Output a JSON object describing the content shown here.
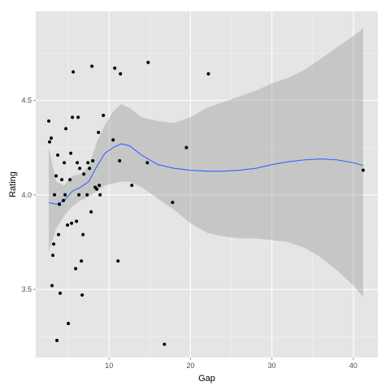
{
  "chart_data": {
    "type": "scatter",
    "xlabel": "Gap",
    "ylabel": "Rating",
    "xlim": [
      1.0,
      43.0
    ],
    "ylim": [
      3.14,
      4.97
    ],
    "x_ticks": [
      10,
      20,
      30,
      40
    ],
    "y_ticks": [
      3.5,
      4.0,
      4.5
    ],
    "x_tick_labels": [
      "10",
      "20",
      "30",
      "40"
    ],
    "y_tick_labels": [
      "3.5",
      "4.0",
      "4.5"
    ],
    "grid": true,
    "background": "#e5e5e5",
    "grid_color": "#ffffff",
    "point_color": "#000000",
    "smooth_line_color": "#3366ff",
    "confidence_band_color": "#999999",
    "points": [
      {
        "x": 2.6,
        "y": 4.39
      },
      {
        "x": 2.7,
        "y": 4.28
      },
      {
        "x": 2.9,
        "y": 4.3
      },
      {
        "x": 3.0,
        "y": 3.52
      },
      {
        "x": 3.1,
        "y": 3.68
      },
      {
        "x": 3.2,
        "y": 3.74
      },
      {
        "x": 3.3,
        "y": 4.0
      },
      {
        "x": 3.5,
        "y": 4.1
      },
      {
        "x": 3.6,
        "y": 3.23
      },
      {
        "x": 3.7,
        "y": 4.21
      },
      {
        "x": 3.8,
        "y": 3.79
      },
      {
        "x": 3.9,
        "y": 3.95
      },
      {
        "x": 4.0,
        "y": 3.48
      },
      {
        "x": 4.2,
        "y": 4.08
      },
      {
        "x": 4.4,
        "y": 3.97
      },
      {
        "x": 4.5,
        "y": 4.17
      },
      {
        "x": 4.6,
        "y": 4.0
      },
      {
        "x": 4.7,
        "y": 4.35
      },
      {
        "x": 4.9,
        "y": 3.84
      },
      {
        "x": 5.0,
        "y": 3.32
      },
      {
        "x": 5.2,
        "y": 4.08
      },
      {
        "x": 5.3,
        "y": 4.22
      },
      {
        "x": 5.4,
        "y": 3.85
      },
      {
        "x": 5.5,
        "y": 4.41
      },
      {
        "x": 5.6,
        "y": 4.65
      },
      {
        "x": 5.9,
        "y": 3.61
      },
      {
        "x": 6.0,
        "y": 3.86
      },
      {
        "x": 6.1,
        "y": 4.17
      },
      {
        "x": 6.2,
        "y": 4.41
      },
      {
        "x": 6.3,
        "y": 4.0
      },
      {
        "x": 6.4,
        "y": 4.14
      },
      {
        "x": 6.6,
        "y": 3.65
      },
      {
        "x": 6.7,
        "y": 3.47
      },
      {
        "x": 6.8,
        "y": 3.79
      },
      {
        "x": 6.9,
        "y": 4.11
      },
      {
        "x": 7.3,
        "y": 4.0
      },
      {
        "x": 7.4,
        "y": 4.17
      },
      {
        "x": 7.6,
        "y": 4.14
      },
      {
        "x": 7.8,
        "y": 3.91
      },
      {
        "x": 7.9,
        "y": 4.68
      },
      {
        "x": 8.0,
        "y": 4.18
      },
      {
        "x": 8.3,
        "y": 4.04
      },
      {
        "x": 8.5,
        "y": 4.03
      },
      {
        "x": 8.7,
        "y": 4.33
      },
      {
        "x": 8.8,
        "y": 4.05
      },
      {
        "x": 8.9,
        "y": 4.0
      },
      {
        "x": 9.3,
        "y": 4.42
      },
      {
        "x": 10.5,
        "y": 4.29
      },
      {
        "x": 10.7,
        "y": 4.67
      },
      {
        "x": 11.1,
        "y": 3.65
      },
      {
        "x": 11.3,
        "y": 4.18
      },
      {
        "x": 11.4,
        "y": 4.64
      },
      {
        "x": 12.8,
        "y": 4.05
      },
      {
        "x": 14.7,
        "y": 4.17
      },
      {
        "x": 14.8,
        "y": 4.7
      },
      {
        "x": 16.8,
        "y": 3.21
      },
      {
        "x": 17.8,
        "y": 3.96
      },
      {
        "x": 19.5,
        "y": 4.25
      },
      {
        "x": 22.2,
        "y": 4.64
      },
      {
        "x": 41.2,
        "y": 4.13
      }
    ],
    "smooth": {
      "x": [
        2.6,
        3.5,
        4.5,
        5.5,
        6.5,
        7.5,
        8.5,
        9.5,
        10.5,
        11.5,
        12.5,
        14.0,
        16.0,
        18.0,
        20.0,
        22.0,
        24.0,
        26.0,
        28.0,
        30.0,
        32.0,
        34.0,
        36.0,
        38.0,
        40.0,
        41.2
      ],
      "y": [
        3.96,
        3.95,
        3.97,
        4.02,
        4.04,
        4.07,
        4.15,
        4.22,
        4.25,
        4.27,
        4.26,
        4.21,
        4.16,
        4.14,
        4.13,
        4.125,
        4.125,
        4.13,
        4.14,
        4.16,
        4.175,
        4.185,
        4.19,
        4.185,
        4.17,
        4.155
      ],
      "lower": [
        3.7,
        3.82,
        3.89,
        3.94,
        3.97,
        3.99,
        4.02,
        4.05,
        4.06,
        4.07,
        4.07,
        4.04,
        3.98,
        3.92,
        3.85,
        3.8,
        3.78,
        3.77,
        3.77,
        3.76,
        3.75,
        3.72,
        3.67,
        3.6,
        3.52,
        3.46
      ],
      "upper": [
        4.25,
        4.07,
        4.05,
        4.1,
        4.11,
        4.15,
        4.28,
        4.37,
        4.44,
        4.48,
        4.46,
        4.41,
        4.39,
        4.38,
        4.41,
        4.46,
        4.49,
        4.52,
        4.55,
        4.59,
        4.62,
        4.66,
        4.72,
        4.78,
        4.84,
        4.88
      ]
    }
  }
}
